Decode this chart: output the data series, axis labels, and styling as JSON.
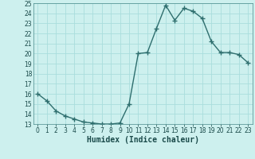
{
  "x": [
    0,
    1,
    2,
    3,
    4,
    5,
    6,
    7,
    8,
    9,
    10,
    11,
    12,
    13,
    14,
    15,
    16,
    17,
    18,
    19,
    20,
    21,
    22,
    23
  ],
  "y": [
    16.0,
    15.3,
    14.3,
    13.8,
    13.5,
    13.2,
    13.1,
    13.0,
    13.0,
    13.1,
    15.0,
    20.0,
    20.1,
    22.5,
    24.8,
    23.3,
    24.5,
    24.2,
    23.5,
    21.2,
    20.1,
    20.1,
    19.9,
    19.1
  ],
  "line_color": "#2e6e6e",
  "marker": "+",
  "marker_size": 4,
  "line_width": 1.0,
  "bg_color": "#cdf0ee",
  "grid_color": "#aadddd",
  "xlabel": "Humidex (Indice chaleur)",
  "ylim": [
    13,
    25
  ],
  "xlim": [
    -0.5,
    23.5
  ],
  "yticks": [
    13,
    14,
    15,
    16,
    17,
    18,
    19,
    20,
    21,
    22,
    23,
    24,
    25
  ],
  "xticks": [
    0,
    1,
    2,
    3,
    4,
    5,
    6,
    7,
    8,
    9,
    10,
    11,
    12,
    13,
    14,
    15,
    16,
    17,
    18,
    19,
    20,
    21,
    22,
    23
  ],
  "tick_fontsize": 5.5,
  "label_fontsize": 7
}
